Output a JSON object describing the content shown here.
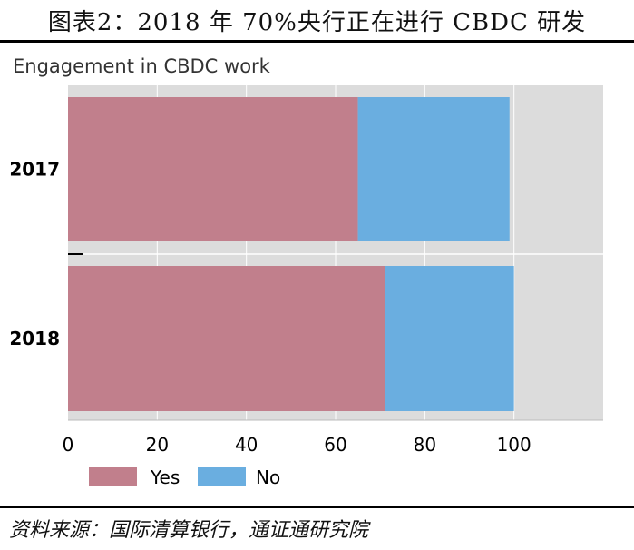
{
  "figure_title": "图表2：2018 年 70%央行正在进行 CBDC 研发",
  "source_note": "资料来源：国际清算银行，通证通研究院",
  "colors": {
    "yes": "#c17f8c",
    "no": "#6aaee0",
    "plot_bg": "#dcdcdc"
  },
  "chart_data": {
    "type": "bar",
    "orientation": "horizontal",
    "stacked": true,
    "title": "Engagement in CBDC work",
    "categories": [
      "2017",
      "2018"
    ],
    "series": [
      {
        "name": "Yes",
        "values": [
          65,
          71
        ]
      },
      {
        "name": "No",
        "values": [
          34,
          29
        ]
      }
    ],
    "xlim": [
      0,
      120
    ],
    "xticks": [
      "0",
      "20",
      "40",
      "60",
      "80",
      "100"
    ],
    "legend": [
      "Yes",
      "No"
    ],
    "legend_position": "bottom-left"
  }
}
